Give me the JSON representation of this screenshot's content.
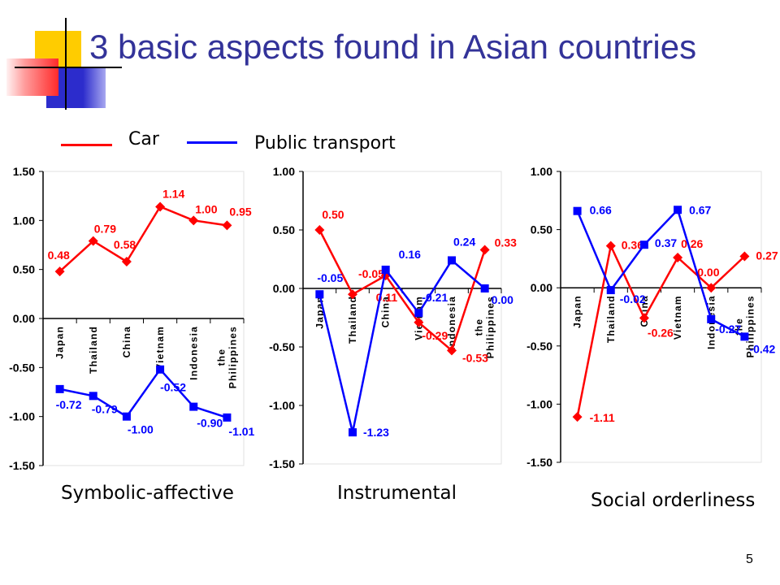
{
  "slide": {
    "title": "3 basic aspects found in Asian countries",
    "page_number": "5"
  },
  "colors": {
    "title": "#333399",
    "car": "#ff0000",
    "public_transport": "#0000ff",
    "logo_yellow": "#ffcc00",
    "logo_red": "#ff2a2a",
    "logo_blue": "#2c2ccc"
  },
  "legend": [
    {
      "label": "Car",
      "color": "#ff0000"
    },
    {
      "label": "Public transport",
      "color": "#0000ff"
    }
  ],
  "chart_data": [
    {
      "type": "line",
      "title": "Symbolic-affective",
      "categories": [
        "Japan",
        "Thailand",
        "China",
        "Vietnam",
        "Indonesia",
        "the Philippines"
      ],
      "ylim": [
        -1.5,
        1.5
      ],
      "yticks": [
        1.5,
        1.0,
        0.5,
        0.0,
        -0.5,
        -1.0,
        -1.5
      ],
      "grid": false,
      "data_labels": true,
      "series": [
        {
          "name": "Car",
          "color": "#ff0000",
          "marker": "diamond",
          "values": [
            0.48,
            0.79,
            0.58,
            1.14,
            1.0,
            0.95
          ]
        },
        {
          "name": "Public transport",
          "color": "#0000ff",
          "marker": "square",
          "values": [
            -0.72,
            -0.79,
            -1.0,
            -0.52,
            -0.9,
            -1.01
          ]
        }
      ]
    },
    {
      "type": "line",
      "title": "Instrumental",
      "categories": [
        "Japan",
        "Thailand",
        "China",
        "Vietnam",
        "Indonesia",
        "the Philippines"
      ],
      "ylim": [
        -1.5,
        1.0
      ],
      "yticks": [
        1.0,
        0.5,
        0.0,
        -0.5,
        -1.0,
        -1.5
      ],
      "grid": false,
      "data_labels": true,
      "series": [
        {
          "name": "Car",
          "color": "#ff0000",
          "marker": "diamond",
          "values": [
            0.5,
            -0.05,
            0.11,
            -0.29,
            -0.53,
            0.33
          ]
        },
        {
          "name": "Public transport",
          "color": "#0000ff",
          "marker": "square",
          "values": [
            -0.05,
            -1.23,
            0.16,
            -0.21,
            0.24,
            0.0
          ]
        }
      ]
    },
    {
      "type": "line",
      "title": "Social orderliness",
      "categories": [
        "Japan",
        "Thailand",
        "China",
        "Vietnam",
        "Indonesia",
        "the Philippines"
      ],
      "ylim": [
        -1.5,
        1.0
      ],
      "yticks": [
        1.0,
        0.5,
        0.0,
        -0.5,
        -1.0,
        -1.5
      ],
      "grid": false,
      "data_labels": true,
      "series": [
        {
          "name": "Car",
          "color": "#ff0000",
          "marker": "diamond",
          "values": [
            -1.11,
            0.36,
            -0.26,
            0.26,
            0.0,
            0.27
          ]
        },
        {
          "name": "Public transport",
          "color": "#0000ff",
          "marker": "square",
          "values": [
            0.66,
            -0.02,
            0.37,
            0.67,
            -0.27,
            -0.42
          ]
        }
      ]
    }
  ]
}
